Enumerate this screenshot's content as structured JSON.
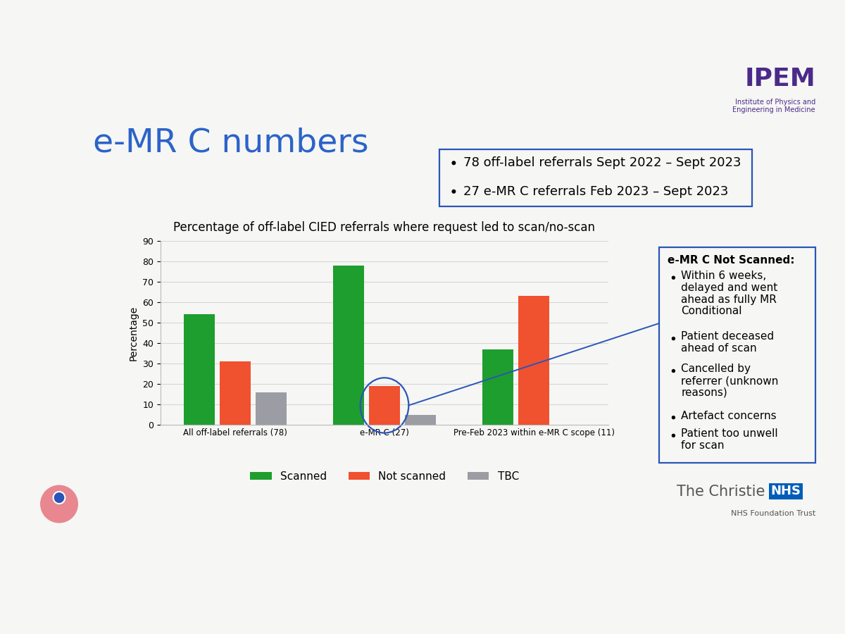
{
  "chart_data": {
    "type": "bar",
    "title": "Percentage of off-label CIED referrals where request led to scan/no-scan",
    "categories": [
      "All off-label referrals (78)",
      "e-MR C (27)",
      "Pre-Feb 2023 within e-MR C scope (11)"
    ],
    "series": [
      {
        "name": "Scanned",
        "color": "#1e9e2e",
        "values": [
          54,
          78,
          37
        ]
      },
      {
        "name": "Not scanned",
        "color": "#f0512f",
        "values": [
          31,
          19,
          63
        ]
      },
      {
        "name": "TBC",
        "color": "#9c9ca4",
        "values": [
          16,
          5,
          0
        ]
      }
    ],
    "ylabel": "Percentage",
    "ylim": [
      0,
      90
    ],
    "yticks": [
      0,
      10,
      20,
      30,
      40,
      50,
      60,
      70,
      80,
      90
    ],
    "grid": true,
    "legend": "bottom"
  },
  "slide": {
    "title": "e-MR C numbers",
    "info_box": [
      "78 off-label referrals Sept 2022 – Sept 2023",
      "27 e-MR C referrals Feb 2023 – Sept 2023"
    ],
    "note_box": {
      "title": "e-MR C Not Scanned:",
      "items": [
        "Within 6 weeks, delayed and went ahead as fully MR Conditional",
        "Patient deceased ahead of scan",
        "Cancelled by referrer (unknown reasons)",
        "Artefact concerns",
        "Patient too unwell for scan"
      ]
    },
    "logo": {
      "name": "IPEM",
      "subtitle": "Institute of Physics and Engineering in Medicine"
    },
    "footer": {
      "name": "The Christie",
      "badge": "NHS",
      "subtitle": "NHS Foundation Trust"
    }
  }
}
